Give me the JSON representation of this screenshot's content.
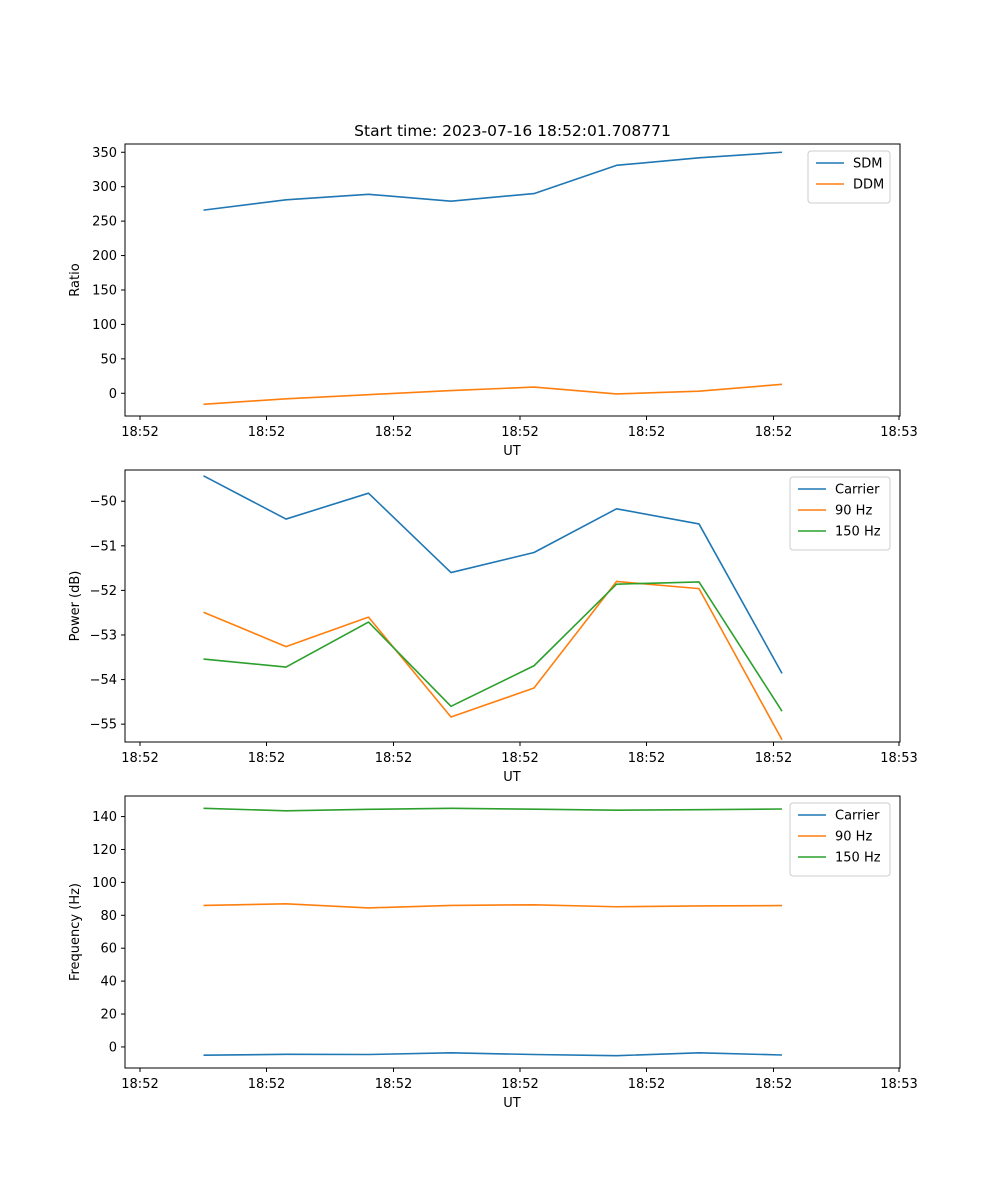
{
  "chart_data": [
    {
      "type": "line",
      "title": "Start time: 2023-07-16 18:52:01.708771",
      "xlabel": "UT",
      "ylabel": "Ratio",
      "ylim": [
        -33,
        362
      ],
      "yticks": [
        0,
        50,
        100,
        150,
        200,
        250,
        300,
        350
      ],
      "xticks": [
        "18:52",
        "18:52",
        "18:52",
        "18:52",
        "18:52",
        "18:52",
        "18:53"
      ],
      "legend_position": "top-right",
      "series": [
        {
          "name": "SDM",
          "color": "#1f77b4",
          "values": [
            266,
            281,
            289,
            279,
            290,
            331,
            342,
            350
          ]
        },
        {
          "name": "DDM",
          "color": "#ff7f0e",
          "values": [
            -16,
            -8,
            -2,
            4,
            9,
            -1,
            3,
            13
          ]
        }
      ]
    },
    {
      "type": "line",
      "title": "",
      "xlabel": "UT",
      "ylabel": "Power (dB)",
      "ylim": [
        -55.4,
        -49.3
      ],
      "yticks": [
        -50,
        -51,
        -52,
        -53,
        -54,
        -55
      ],
      "yticklabels": [
        "−50",
        "−51",
        "−52",
        "−53",
        "−54",
        "−55"
      ],
      "xticks": [
        "18:52",
        "18:52",
        "18:52",
        "18:52",
        "18:52",
        "18:52",
        "18:53"
      ],
      "legend_position": "top-right",
      "series": [
        {
          "name": "Carrier",
          "color": "#1f77b4",
          "values": [
            -49.43,
            -50.4,
            -49.82,
            -51.6,
            -51.15,
            -50.17,
            -50.51,
            -53.86
          ]
        },
        {
          "name": "90 Hz",
          "color": "#ff7f0e",
          "values": [
            -52.49,
            -53.26,
            -52.6,
            -54.84,
            -54.19,
            -51.8,
            -51.96,
            -55.35
          ]
        },
        {
          "name": "150 Hz",
          "color": "#2ca02c",
          "values": [
            -53.54,
            -53.72,
            -52.71,
            -54.6,
            -53.69,
            -51.86,
            -51.81,
            -54.71
          ]
        }
      ]
    },
    {
      "type": "line",
      "title": "",
      "xlabel": "UT",
      "ylabel": "Frequency (Hz)",
      "ylim": [
        -12.8,
        152.5
      ],
      "yticks": [
        0,
        20,
        40,
        60,
        80,
        100,
        120,
        140
      ],
      "xticks": [
        "18:52",
        "18:52",
        "18:52",
        "18:52",
        "18:52",
        "18:52",
        "18:53"
      ],
      "legend_position": "top-right",
      "series": [
        {
          "name": "Carrier",
          "color": "#1f77b4",
          "values": [
            -5,
            -4.5,
            -4.6,
            -3.6,
            -4.6,
            -5.3,
            -3.6,
            -4.9
          ]
        },
        {
          "name": "90 Hz",
          "color": "#ff7f0e",
          "values": [
            86,
            87,
            84.5,
            86,
            86.4,
            85.2,
            85.7,
            85.9
          ]
        },
        {
          "name": "150 Hz",
          "color": "#2ca02c",
          "values": [
            145,
            143.5,
            144.4,
            145,
            144.5,
            143.9,
            144.2,
            144.6
          ]
        }
      ]
    }
  ]
}
